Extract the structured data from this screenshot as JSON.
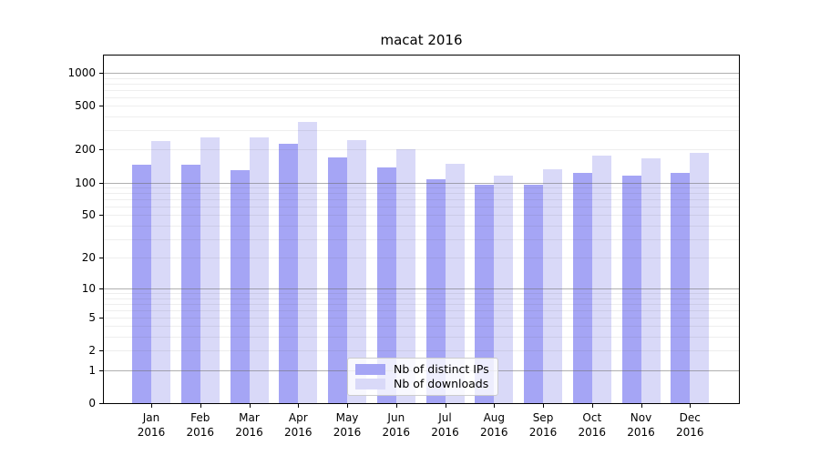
{
  "chart_data": {
    "type": "bar",
    "title": "macat 2016",
    "categories": [
      "Jan",
      "Feb",
      "Mar",
      "Apr",
      "May",
      "Jun",
      "Jul",
      "Aug",
      "Sep",
      "Oct",
      "Nov",
      "Dec"
    ],
    "x_sublabel": "2016",
    "series": [
      {
        "name": "Nb of distinct IPs",
        "color": "#a5a5f5",
        "values": [
          145,
          145,
          130,
          225,
          170,
          138,
          107,
          96,
          95,
          123,
          115,
          122
        ]
      },
      {
        "name": "Nb of downloads",
        "color": "#d9d9f8",
        "values": [
          240,
          260,
          260,
          358,
          245,
          200,
          148,
          115,
          132,
          175,
          165,
          186
        ]
      }
    ],
    "y_axis": {
      "scale": "log1p",
      "ylim": [
        0,
        1434
      ],
      "tick_labels": [
        0,
        1,
        2,
        5,
        10,
        20,
        50,
        100,
        200,
        500,
        1000
      ],
      "major_gridlines": [
        1,
        10,
        100,
        1000
      ],
      "minor_gridlines": [
        2,
        3,
        4,
        5,
        6,
        7,
        8,
        9,
        20,
        30,
        40,
        50,
        60,
        70,
        80,
        90,
        200,
        300,
        400,
        500,
        600,
        700,
        800,
        900
      ]
    },
    "legend_position": "lower center",
    "grid": true
  },
  "colors": {
    "background": "#ffffff",
    "axis_frame": "#000000",
    "major_grid": "#9e9e9e",
    "minor_grid": "#ebebeb",
    "bar_dark": "#a5a5f5",
    "bar_light": "#d9d9f8"
  }
}
